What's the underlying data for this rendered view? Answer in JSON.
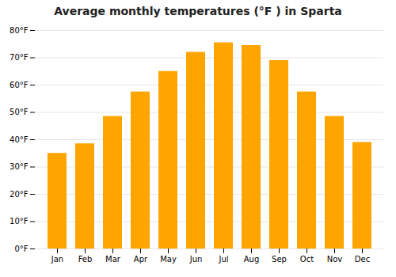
{
  "chart_data": {
    "type": "bar",
    "title": "Average monthly temperatures (°F ) in Sparta",
    "categories": [
      "Jan",
      "Feb",
      "Mar",
      "Apr",
      "May",
      "Jun",
      "Jul",
      "Aug",
      "Sep",
      "Oct",
      "Nov",
      "Dec"
    ],
    "values": [
      35,
      38.5,
      48.5,
      57.5,
      65,
      72,
      75.5,
      74.5,
      69,
      57.5,
      48.5,
      39
    ],
    "color": "#FFA500",
    "ylim": [
      0,
      80
    ],
    "yticks": [
      {
        "value": 0,
        "label": "0°F"
      },
      {
        "value": 10,
        "label": "10°F"
      },
      {
        "value": 20,
        "label": "20°F"
      },
      {
        "value": 30,
        "label": "30°F"
      },
      {
        "value": 40,
        "label": "40°F"
      },
      {
        "value": 50,
        "label": "50°F"
      },
      {
        "value": 60,
        "label": "60°F"
      },
      {
        "value": 70,
        "label": "70°F"
      },
      {
        "value": 80,
        "label": "80°F"
      }
    ],
    "grid": true
  }
}
